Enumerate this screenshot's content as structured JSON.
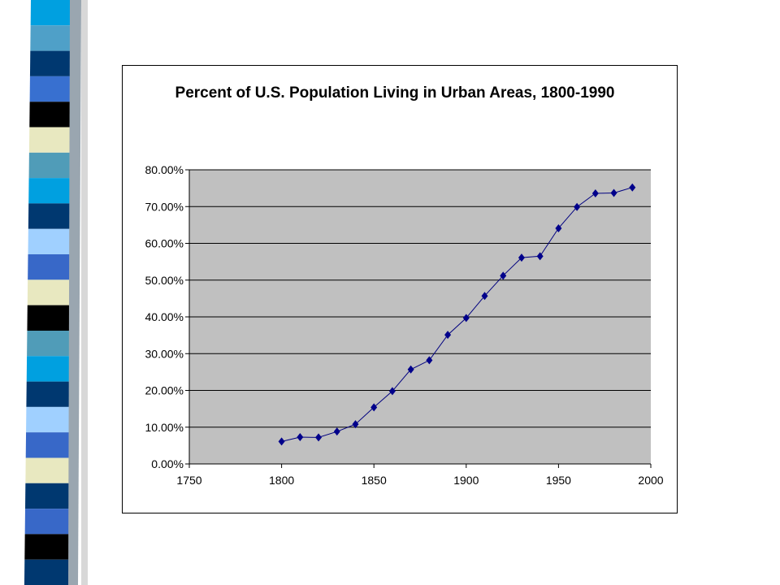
{
  "colors": {
    "plot_background": "#c0c0c0",
    "gridline": "#000000",
    "series_line": "#00007f",
    "marker": "#00008b",
    "decor_stripes": [
      "#00a0e0",
      "#4fa0c8",
      "#003870",
      "#3870d0",
      "#000000",
      "#e8e8c0",
      "#509cb8",
      "#00a0e0",
      "#003870",
      "#a0d0ff",
      "#3868c8",
      "#e8e8c0",
      "#000000",
      "#509cb8",
      "#00a0e0",
      "#003870",
      "#a0d0ff",
      "#3868c8",
      "#e8e8c0",
      "#003870",
      "#3868c8",
      "#000000",
      "#003870"
    ]
  },
  "chart_data": {
    "type": "scatter",
    "title": "Percent of U.S. Population Living in Urban Areas, 1800-1990",
    "xlabel": "",
    "ylabel": "",
    "xlim": [
      1750,
      2000
    ],
    "ylim": [
      0,
      0.8
    ],
    "x_ticks": [
      1750,
      1800,
      1850,
      1900,
      1950,
      2000
    ],
    "y_ticks": [
      0,
      0.1,
      0.2,
      0.3,
      0.4,
      0.5,
      0.6,
      0.7,
      0.8
    ],
    "y_tick_labels": [
      "0.00%",
      "10.00%",
      "20.00%",
      "30.00%",
      "40.00%",
      "50.00%",
      "60.00%",
      "70.00%",
      "80.00%"
    ],
    "x_tick_labels": [
      "1750",
      "1800",
      "1850",
      "1900",
      "1950",
      "2000"
    ],
    "grid": "horizontal",
    "marker": "diamond",
    "connected": true,
    "series": [
      {
        "x": [
          1800,
          1810,
          1820,
          1830,
          1840,
          1850,
          1860,
          1870,
          1880,
          1890,
          1900,
          1910,
          1920,
          1930,
          1940,
          1950,
          1960,
          1970,
          1980,
          1990
        ],
        "y": [
          0.061,
          0.073,
          0.072,
          0.088,
          0.108,
          0.154,
          0.198,
          0.257,
          0.282,
          0.351,
          0.397,
          0.457,
          0.512,
          0.561,
          0.565,
          0.641,
          0.699,
          0.736,
          0.737,
          0.752
        ]
      }
    ]
  }
}
